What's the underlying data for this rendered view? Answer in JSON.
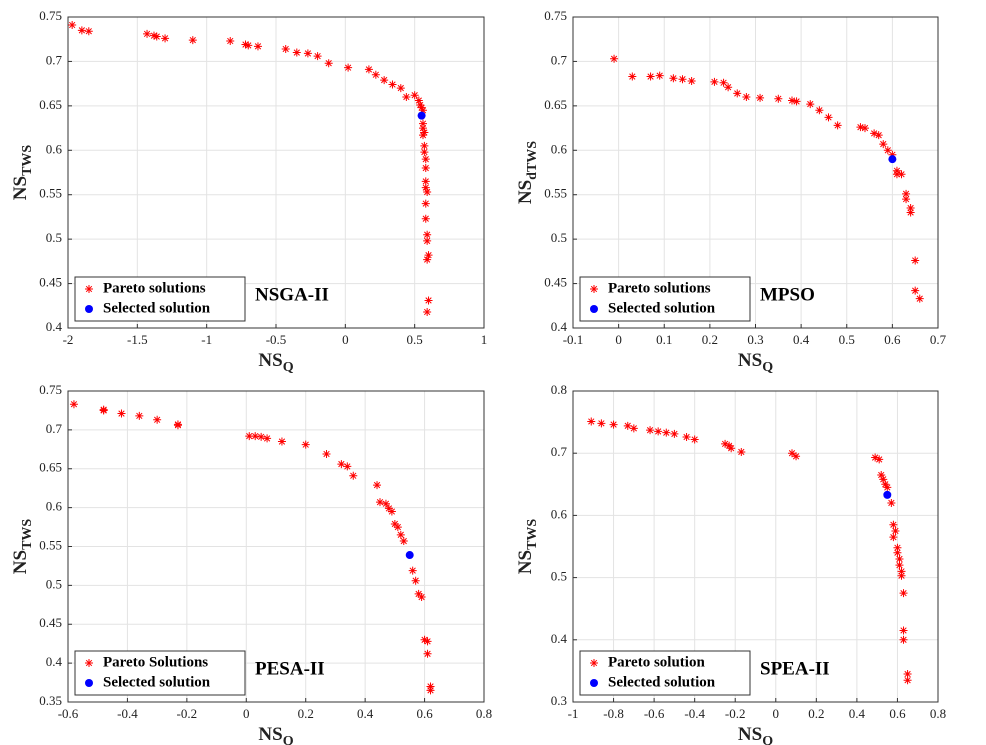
{
  "chart_data": [
    {
      "type": "scatter",
      "xlabel": [
        "NS",
        "Q"
      ],
      "ylabel": [
        "NS",
        "TWS"
      ],
      "annotation": "NSGA-II",
      "xlim": [
        -2,
        1
      ],
      "xticks": [
        -2,
        -1.5,
        -1,
        -0.5,
        0,
        0.5,
        1
      ],
      "ylim": [
        0.4,
        0.75
      ],
      "yticks": [
        0.4,
        0.45,
        0.5,
        0.55,
        0.6,
        0.65,
        0.7,
        0.75
      ],
      "grid": true,
      "legend": "lower left",
      "series": [
        {
          "name": "Pareto solutions",
          "color": "#ff0000",
          "marker": "star",
          "x": [
            -1.97,
            -1.9,
            -1.85,
            -1.43,
            -1.38,
            -1.36,
            -1.3,
            -1.1,
            -0.83,
            -0.72,
            -0.7,
            -0.63,
            -0.43,
            -0.35,
            -0.27,
            -0.2,
            -0.12,
            0.02,
            0.17,
            0.22,
            0.28,
            0.34,
            0.4,
            0.44,
            0.5,
            0.53,
            0.54,
            0.55,
            0.56,
            0.56,
            0.56,
            0.57,
            0.56,
            0.57,
            0.57,
            0.58,
            0.58,
            0.58,
            0.58,
            0.59,
            0.58,
            0.58,
            0.59,
            0.59,
            0.6,
            0.59,
            0.6,
            0.59
          ],
          "values": [
            0.741,
            0.735,
            0.734,
            0.731,
            0.729,
            0.728,
            0.726,
            0.724,
            0.723,
            0.719,
            0.718,
            0.717,
            0.714,
            0.71,
            0.709,
            0.706,
            0.698,
            0.693,
            0.691,
            0.685,
            0.679,
            0.674,
            0.67,
            0.66,
            0.662,
            0.656,
            0.651,
            0.648,
            0.645,
            0.63,
            0.625,
            0.62,
            0.617,
            0.605,
            0.598,
            0.59,
            0.58,
            0.565,
            0.558,
            0.553,
            0.54,
            0.523,
            0.505,
            0.498,
            0.482,
            0.477,
            0.431,
            0.418
          ]
        },
        {
          "name": "Selected solution",
          "color": "#0000ff",
          "marker": "dot",
          "x": [
            0.55
          ],
          "values": [
            0.639
          ]
        }
      ]
    },
    {
      "type": "scatter",
      "xlabel": [
        "NS",
        "Q"
      ],
      "ylabel": [
        "NS",
        "dTWS"
      ],
      "annotation": "MPSO",
      "xlim": [
        -0.1,
        0.7
      ],
      "xticks": [
        -0.1,
        0,
        0.1,
        0.2,
        0.3,
        0.4,
        0.5,
        0.6,
        0.7
      ],
      "ylim": [
        0.4,
        0.75
      ],
      "yticks": [
        0.4,
        0.45,
        0.5,
        0.55,
        0.6,
        0.65,
        0.7,
        0.75
      ],
      "grid": true,
      "legend": "lower left",
      "series": [
        {
          "name": "Pareto solutions",
          "color": "#ff0000",
          "marker": "star",
          "x": [
            -0.01,
            0.03,
            0.07,
            0.09,
            0.12,
            0.14,
            0.16,
            0.21,
            0.23,
            0.24,
            0.26,
            0.28,
            0.31,
            0.35,
            0.38,
            0.39,
            0.42,
            0.44,
            0.46,
            0.48,
            0.53,
            0.54,
            0.56,
            0.57,
            0.58,
            0.59,
            0.6,
            0.61,
            0.61,
            0.62,
            0.63,
            0.63,
            0.64,
            0.64,
            0.65,
            0.65,
            0.66
          ],
          "values": [
            0.703,
            0.683,
            0.683,
            0.684,
            0.681,
            0.68,
            0.678,
            0.677,
            0.676,
            0.671,
            0.664,
            0.66,
            0.659,
            0.658,
            0.656,
            0.655,
            0.652,
            0.645,
            0.637,
            0.628,
            0.626,
            0.625,
            0.619,
            0.617,
            0.607,
            0.6,
            0.595,
            0.577,
            0.573,
            0.573,
            0.551,
            0.545,
            0.535,
            0.53,
            0.476,
            0.442,
            0.433
          ]
        },
        {
          "name": "Selected solution",
          "color": "#0000ff",
          "marker": "dot",
          "x": [
            0.6
          ],
          "values": [
            0.59
          ]
        }
      ]
    },
    {
      "type": "scatter",
      "xlabel": [
        "NS",
        "Q"
      ],
      "ylabel": [
        "NS",
        "TWS"
      ],
      "annotation": "PESA-II",
      "xlim": [
        -0.6,
        0.8
      ],
      "xticks": [
        -0.6,
        -0.4,
        -0.2,
        0,
        0.2,
        0.4,
        0.6,
        0.8
      ],
      "ylim": [
        0.35,
        0.75
      ],
      "yticks": [
        0.35,
        0.4,
        0.45,
        0.5,
        0.55,
        0.6,
        0.65,
        0.7,
        0.75
      ],
      "grid": true,
      "legend": "lower left",
      "series": [
        {
          "name": "Pareto Solutions",
          "color": "#ff0000",
          "marker": "star",
          "x": [
            -0.58,
            -0.48,
            -0.48,
            -0.42,
            -0.36,
            -0.3,
            -0.23,
            -0.23,
            0.01,
            0.03,
            0.05,
            0.07,
            0.12,
            0.2,
            0.27,
            0.32,
            0.34,
            0.36,
            0.44,
            0.45,
            0.47,
            0.48,
            0.49,
            0.5,
            0.51,
            0.52,
            0.53,
            0.56,
            0.57,
            0.58,
            0.59,
            0.6,
            0.61,
            0.61,
            0.62,
            0.62
          ],
          "values": [
            0.733,
            0.726,
            0.725,
            0.721,
            0.718,
            0.713,
            0.707,
            0.706,
            0.692,
            0.692,
            0.691,
            0.689,
            0.685,
            0.681,
            0.669,
            0.656,
            0.653,
            0.641,
            0.629,
            0.607,
            0.605,
            0.599,
            0.595,
            0.579,
            0.575,
            0.565,
            0.557,
            0.519,
            0.506,
            0.489,
            0.485,
            0.43,
            0.428,
            0.412,
            0.37,
            0.365
          ]
        },
        {
          "name": "Selected solution",
          "color": "#0000ff",
          "marker": "dot",
          "x": [
            0.55
          ],
          "values": [
            0.539
          ]
        }
      ]
    },
    {
      "type": "scatter",
      "xlabel": [
        "NS",
        "Q"
      ],
      "ylabel": [
        "NS",
        "TWS"
      ],
      "annotation": "SPEA-II",
      "xlim": [
        -1,
        0.8
      ],
      "xticks": [
        -1,
        -0.8,
        -0.6,
        -0.4,
        -0.2,
        0,
        0.2,
        0.4,
        0.6,
        0.8
      ],
      "ylim": [
        0.3,
        0.8
      ],
      "yticks": [
        0.3,
        0.4,
        0.5,
        0.6,
        0.7,
        0.8
      ],
      "grid": true,
      "legend": "lower left",
      "series": [
        {
          "name": "Pareto solution",
          "color": "#ff0000",
          "marker": "star",
          "x": [
            -0.91,
            -0.86,
            -0.8,
            -0.73,
            -0.7,
            -0.62,
            -0.58,
            -0.54,
            -0.5,
            -0.44,
            -0.4,
            -0.25,
            -0.23,
            -0.22,
            -0.17,
            0.08,
            0.1,
            0.49,
            0.51,
            0.52,
            0.53,
            0.54,
            0.55,
            0.57,
            0.58,
            0.59,
            0.58,
            0.6,
            0.6,
            0.61,
            0.61,
            0.62,
            0.62,
            0.63,
            0.63,
            0.63,
            0.65,
            0.65
          ],
          "values": [
            0.751,
            0.748,
            0.746,
            0.744,
            0.74,
            0.737,
            0.735,
            0.733,
            0.731,
            0.726,
            0.722,
            0.715,
            0.712,
            0.708,
            0.702,
            0.7,
            0.695,
            0.693,
            0.69,
            0.665,
            0.658,
            0.65,
            0.645,
            0.62,
            0.585,
            0.575,
            0.565,
            0.548,
            0.54,
            0.53,
            0.52,
            0.51,
            0.503,
            0.475,
            0.415,
            0.4,
            0.345,
            0.335
          ]
        },
        {
          "name": "Selected solution",
          "color": "#0000ff",
          "marker": "dot",
          "x": [
            0.55
          ],
          "values": [
            0.633
          ]
        }
      ]
    }
  ]
}
